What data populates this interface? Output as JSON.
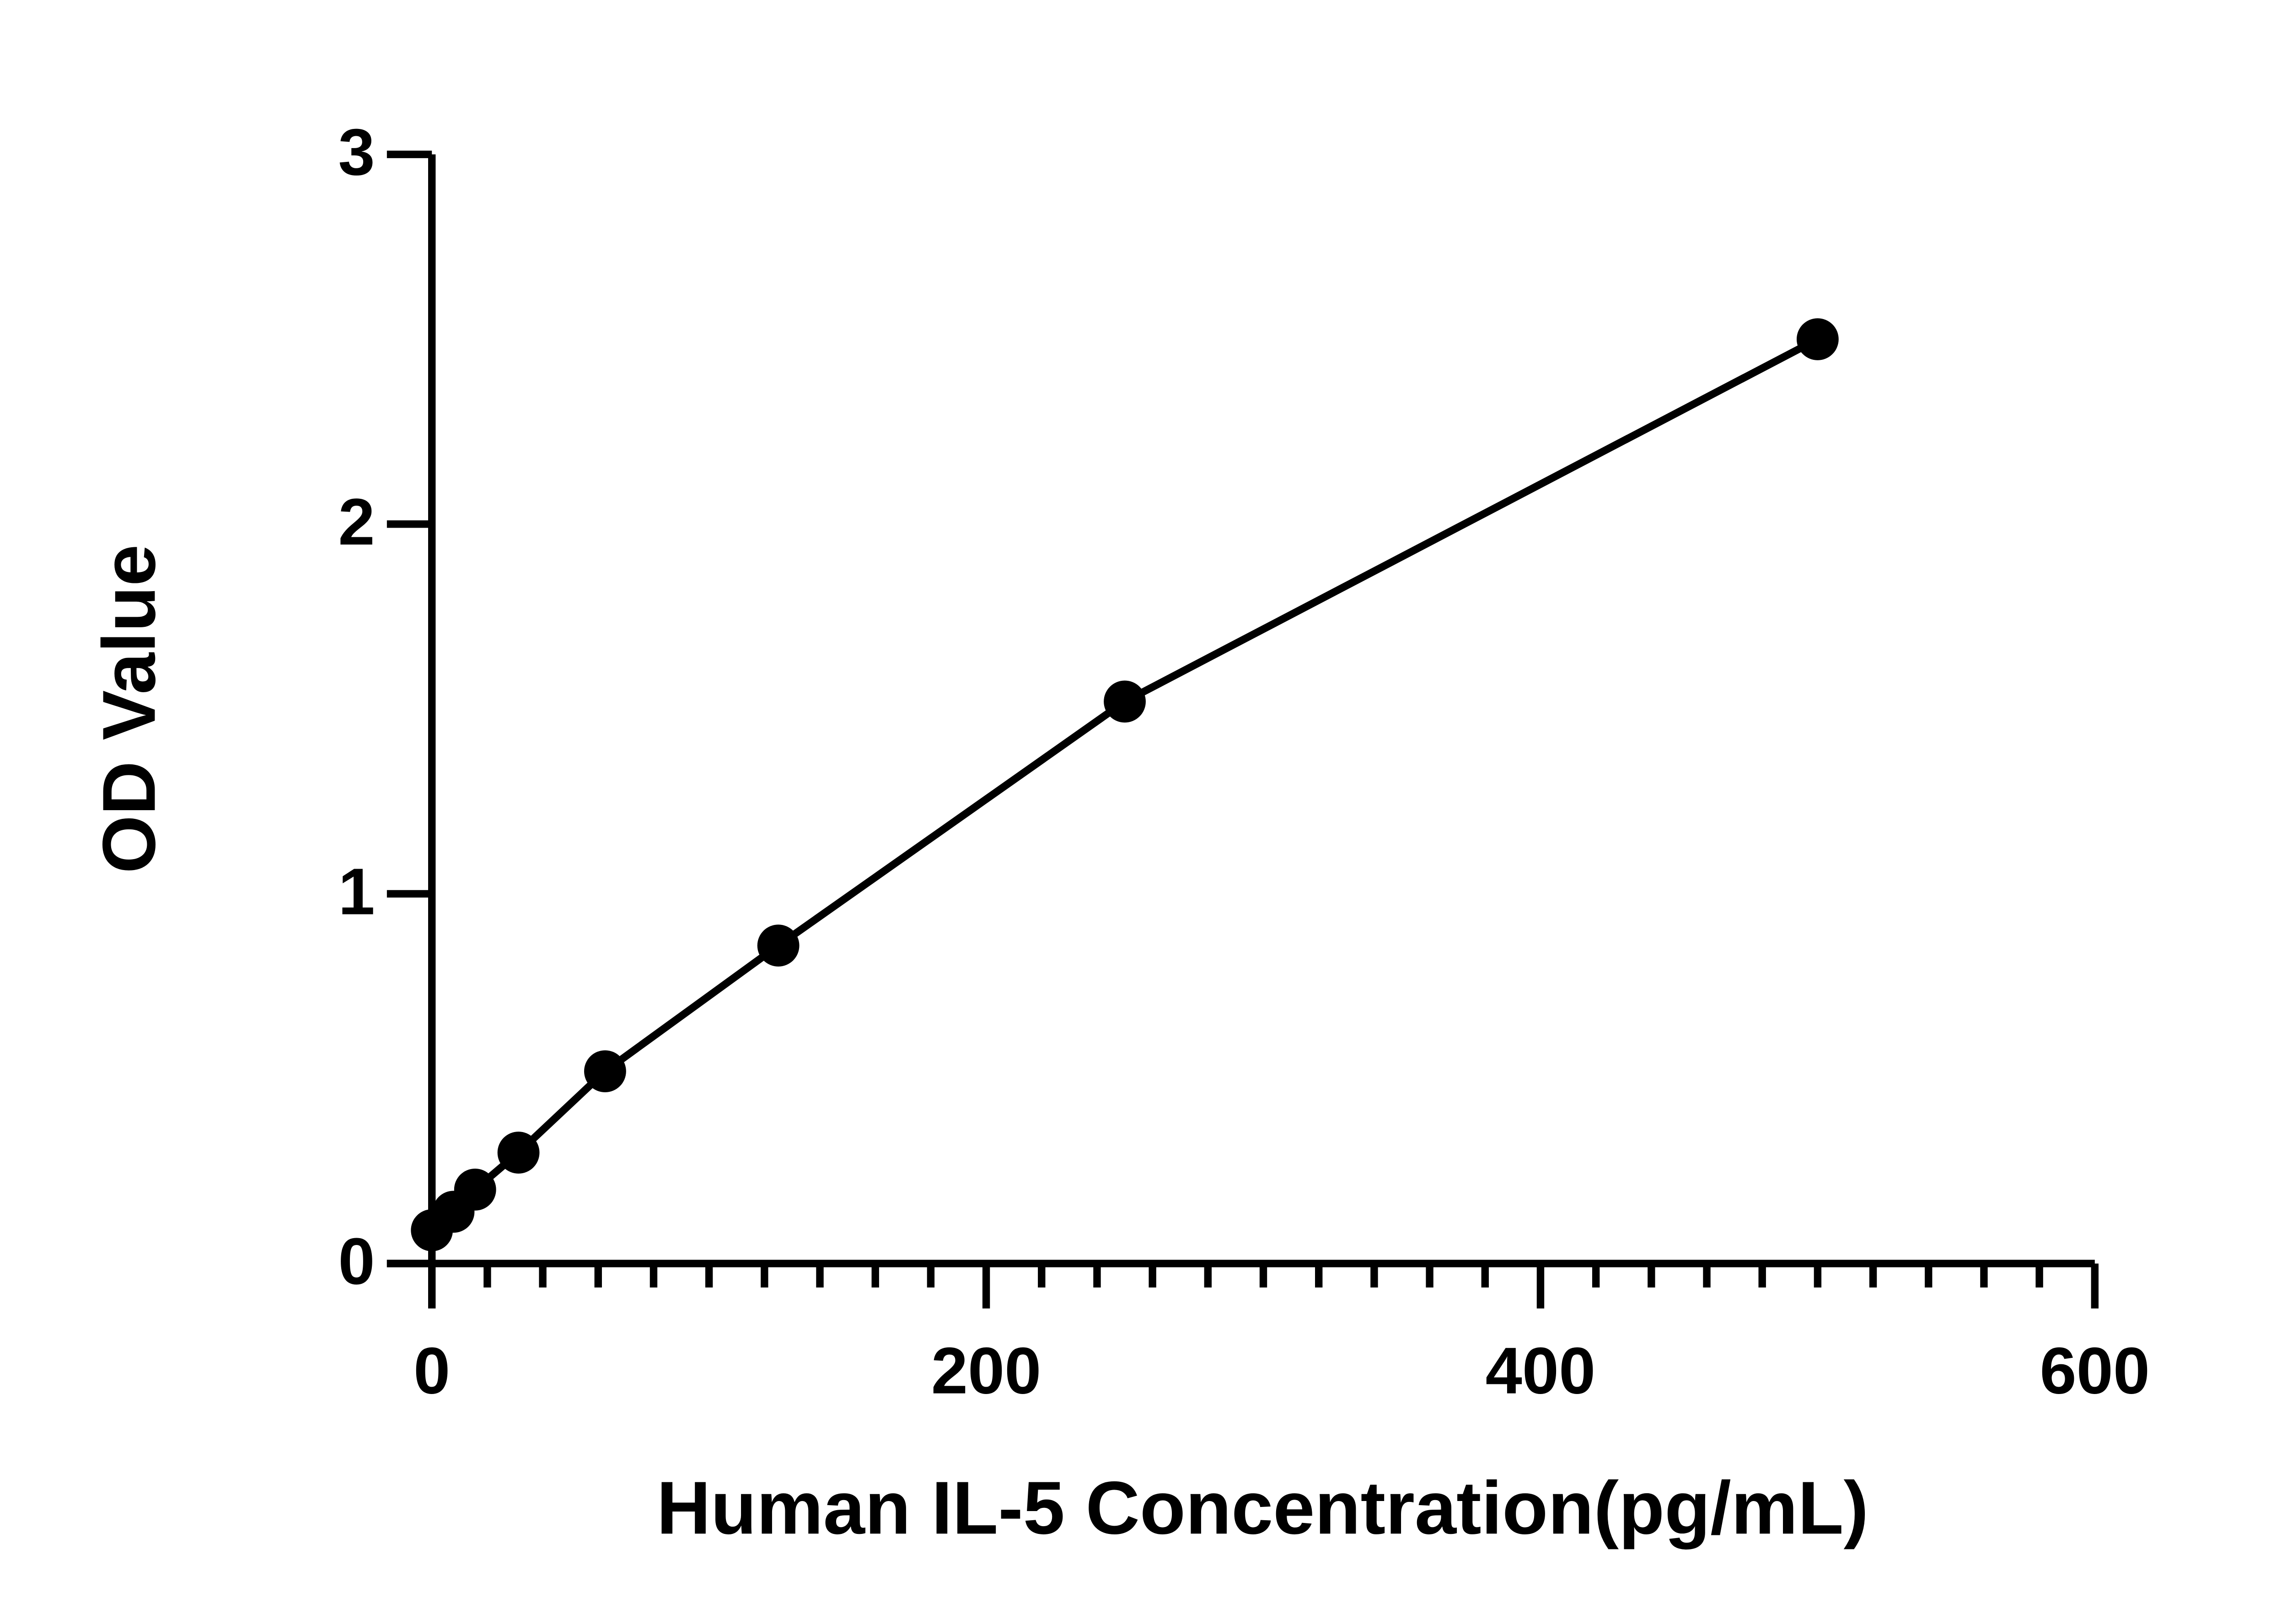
{
  "chart_data": {
    "type": "scatter",
    "x_label": "Human IL-5 Concentration(pg/mL)",
    "y_label": "OD Value",
    "x": [
      0,
      7.8,
      15.6,
      31.25,
      62.5,
      125,
      250,
      500
    ],
    "series": [
      {
        "color": "#000000",
        "values": [
          0.09,
          0.14,
          0.2,
          0.3,
          0.52,
          0.86,
          1.52,
          2.5
        ]
      }
    ],
    "connect": true,
    "xlim": [
      0,
      600
    ],
    "xticks": [
      0,
      200,
      400,
      600
    ],
    "ylim": [
      0,
      3
    ],
    "yticks": [
      0,
      1,
      2,
      3
    ]
  }
}
